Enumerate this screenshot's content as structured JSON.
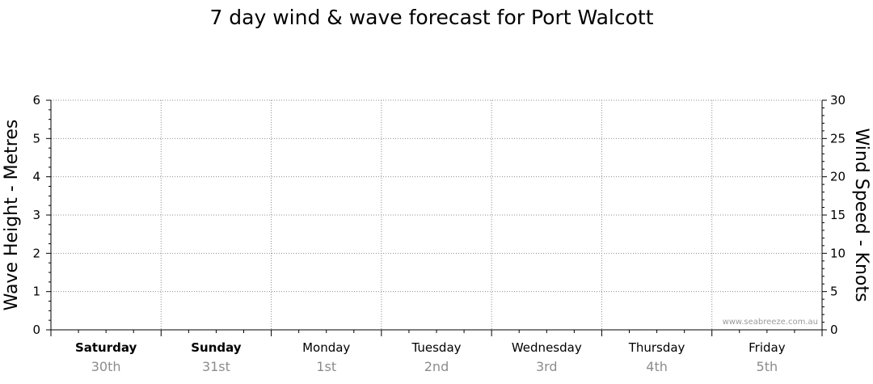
{
  "chart_data": {
    "type": "line",
    "title": "7 day wind & wave forecast for Port Walcott",
    "ylabel_left": "Wave Height - Metres",
    "ylabel_right": "Wind Speed - Knots",
    "ylim_left": [
      0,
      6
    ],
    "ylim_right": [
      0,
      30
    ],
    "yticks_left": [
      "0",
      "1",
      "2",
      "3",
      "4",
      "5",
      "6"
    ],
    "yticks_right": [
      "0",
      "5",
      "10",
      "15",
      "20",
      "25",
      "30"
    ],
    "days": [
      {
        "day": "Saturday",
        "date": "30th",
        "bold": true
      },
      {
        "day": "Sunday",
        "date": "31st",
        "bold": true
      },
      {
        "day": "Monday",
        "date": "1st",
        "bold": false
      },
      {
        "day": "Tuesday",
        "date": "2nd",
        "bold": false
      },
      {
        "day": "Wednesday",
        "date": "3rd",
        "bold": false
      },
      {
        "day": "Thursday",
        "date": "4th",
        "bold": false
      },
      {
        "day": "Friday",
        "date": "5th",
        "bold": false
      }
    ],
    "series": [],
    "grid": true,
    "watermark": "www.seabreeze.com.au"
  }
}
